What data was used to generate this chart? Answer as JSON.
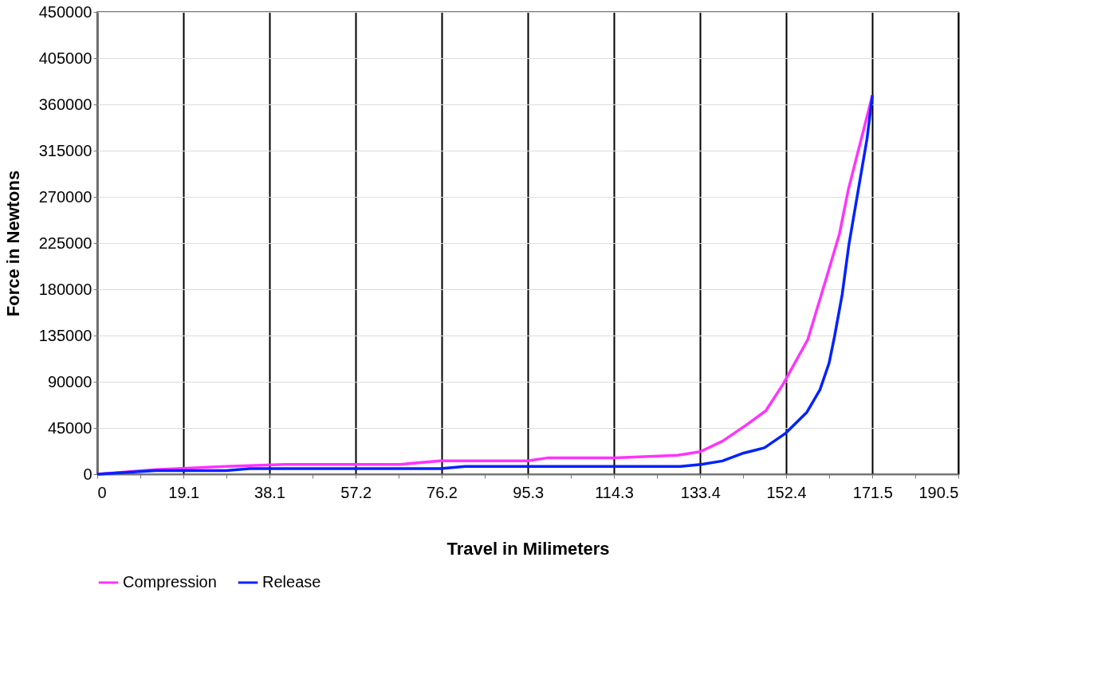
{
  "chart_data": {
    "type": "line",
    "xlabel": "Travel in Milimeters",
    "ylabel": "Force in Newtons",
    "xlim": [
      0,
      190.5
    ],
    "ylim": [
      0,
      450000
    ],
    "xticks": [
      0,
      {
        "value": 9.5,
        "label": null
      },
      19.1,
      {
        "value": 28.6,
        "label": null
      },
      38.1,
      {
        "value": 47.6,
        "label": null
      },
      57.2,
      {
        "value": 66.7,
        "label": null
      },
      76.2,
      {
        "value": 85.7,
        "label": null
      },
      95.3,
      {
        "value": 104.8,
        "label": null
      },
      114.3,
      {
        "value": 123.8,
        "label": null
      },
      133.4,
      {
        "value": 142.9,
        "label": null
      },
      152.4,
      {
        "value": 162,
        "label": null
      },
      171.5,
      {
        "value": 181,
        "label": null
      },
      190.5
    ],
    "yticks": [
      0,
      45000,
      90000,
      135000,
      180000,
      225000,
      270000,
      315000,
      360000,
      405000,
      450000
    ],
    "grid": true,
    "legend": "bottom",
    "line_style": "solid",
    "series": [
      {
        "name": "Compression",
        "color": "#ff33ff",
        "x": [
          0,
          12.9,
          28.4,
          41.4,
          66.8,
          75.9,
          95.2,
          99.8,
          114.4,
          128.4,
          133.4,
          138.3,
          143.5,
          147.9,
          151.7,
          157.2,
          161.6,
          164.2,
          166.2,
          171.5
        ],
        "values": [
          0,
          4500,
          7500,
          9500,
          9500,
          13000,
          13000,
          16000,
          16000,
          18500,
          21900,
          32100,
          47600,
          61700,
          87400,
          131100,
          195400,
          234000,
          277700,
          369000
        ]
      },
      {
        "name": "Release",
        "color": "#0022ff",
        "x": [
          0,
          12.9,
          28.4,
          33.7,
          75.9,
          81.4,
          114.4,
          129.0,
          133.6,
          138.3,
          143.0,
          145.3,
          147.6,
          152.3,
          157.0,
          159.9,
          161.9,
          163.1,
          164.8,
          166.3,
          168.0,
          170.3,
          171.5
        ],
        "values": [
          0,
          3500,
          3500,
          5500,
          5500,
          7500,
          7500,
          7500,
          9500,
          12900,
          20600,
          23100,
          25700,
          39900,
          60400,
          82300,
          108000,
          133700,
          174800,
          223700,
          267400,
          326500,
          369000
        ]
      }
    ]
  }
}
